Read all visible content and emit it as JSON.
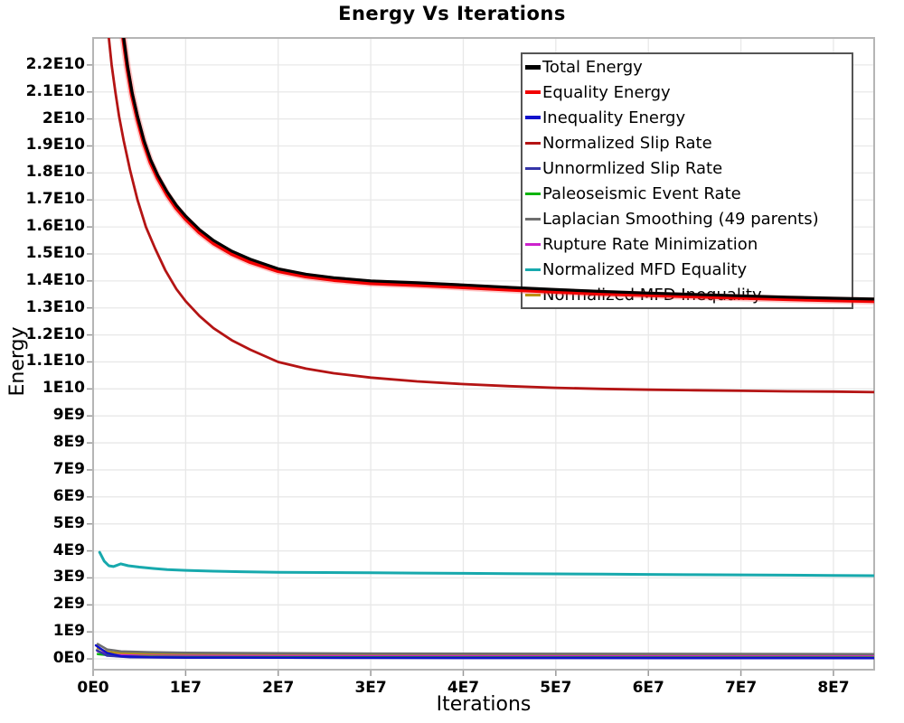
{
  "title": "Energy Vs Iterations",
  "chart_data": {
    "type": "line",
    "title": "Energy Vs Iterations",
    "xlabel": "Iterations",
    "ylabel": "Energy",
    "xlim": [
      0,
      84400000.0
    ],
    "ylim": [
      -400000000.0,
      23000000000.0
    ],
    "x_multiplier": 10000000.0,
    "y_multiplier": 1000000000.0,
    "grid": true,
    "grid_color": "#e8e8e8",
    "border_color": "#b5b5b5",
    "tick_color": "#999999",
    "legend_position": "top-right-inside",
    "x_ticks": [
      {
        "value": 0,
        "label": "0E0"
      },
      {
        "value": 1,
        "label": "1E7"
      },
      {
        "value": 2,
        "label": "2E7"
      },
      {
        "value": 3,
        "label": "3E7"
      },
      {
        "value": 4,
        "label": "4E7"
      },
      {
        "value": 5,
        "label": "5E7"
      },
      {
        "value": 6,
        "label": "6E7"
      },
      {
        "value": 7,
        "label": "7E7"
      },
      {
        "value": 8,
        "label": "8E7"
      }
    ],
    "y_ticks": [
      {
        "value": 0,
        "label": "0E0"
      },
      {
        "value": 1,
        "label": "1E9"
      },
      {
        "value": 2,
        "label": "2E9"
      },
      {
        "value": 3,
        "label": "3E9"
      },
      {
        "value": 4,
        "label": "4E9"
      },
      {
        "value": 5,
        "label": "5E9"
      },
      {
        "value": 6,
        "label": "6E9"
      },
      {
        "value": 7,
        "label": "7E9"
      },
      {
        "value": 8,
        "label": "8E9"
      },
      {
        "value": 9,
        "label": "9E9"
      },
      {
        "value": 10,
        "label": "1E10"
      },
      {
        "value": 11,
        "label": "1.1E10"
      },
      {
        "value": 12,
        "label": "1.2E10"
      },
      {
        "value": 13,
        "label": "1.3E10"
      },
      {
        "value": 14,
        "label": "1.4E10"
      },
      {
        "value": 15,
        "label": "1.5E10"
      },
      {
        "value": 16,
        "label": "1.6E10"
      },
      {
        "value": 17,
        "label": "1.7E10"
      },
      {
        "value": 18,
        "label": "1.8E10"
      },
      {
        "value": 19,
        "label": "1.9E10"
      },
      {
        "value": 20,
        "label": "2E10"
      },
      {
        "value": 21,
        "label": "2.1E10"
      },
      {
        "value": 22,
        "label": "2.2E10"
      }
    ],
    "series": [
      {
        "name": "Total Energy",
        "color": "#000000",
        "stroke_width": 3.2,
        "swatch_height": 5,
        "points": [
          [
            0.27,
            25
          ],
          [
            0.3,
            23.8
          ],
          [
            0.33,
            23.0
          ],
          [
            0.37,
            22.0
          ],
          [
            0.42,
            21.0
          ],
          [
            0.48,
            20.1
          ],
          [
            0.55,
            19.2
          ],
          [
            0.62,
            18.5
          ],
          [
            0.7,
            17.9
          ],
          [
            0.8,
            17.3
          ],
          [
            0.9,
            16.8
          ],
          [
            1.0,
            16.4
          ],
          [
            1.15,
            15.9
          ],
          [
            1.3,
            15.5
          ],
          [
            1.5,
            15.1
          ],
          [
            1.7,
            14.8
          ],
          [
            2.0,
            14.45
          ],
          [
            2.3,
            14.25
          ],
          [
            2.6,
            14.12
          ],
          [
            3.0,
            14.0
          ],
          [
            3.5,
            13.93
          ],
          [
            4.0,
            13.85
          ],
          [
            4.5,
            13.76
          ],
          [
            5.0,
            13.68
          ],
          [
            5.5,
            13.61
          ],
          [
            6.0,
            13.55
          ],
          [
            6.5,
            13.5
          ],
          [
            7.0,
            13.45
          ],
          [
            7.5,
            13.4
          ],
          [
            8.0,
            13.36
          ],
          [
            8.44,
            13.33
          ]
        ]
      },
      {
        "name": "Equality Energy",
        "color": "#f20000",
        "stroke_width": 4.5,
        "swatch_height": 4,
        "halo_color": "rgba(255,70,70,0.3)",
        "halo_width": 8,
        "points": [
          [
            0.27,
            24.9
          ],
          [
            0.3,
            23.7
          ],
          [
            0.33,
            22.9
          ],
          [
            0.37,
            21.9
          ],
          [
            0.42,
            20.9
          ],
          [
            0.48,
            20.0
          ],
          [
            0.55,
            19.1
          ],
          [
            0.62,
            18.4
          ],
          [
            0.7,
            17.8
          ],
          [
            0.8,
            17.2
          ],
          [
            0.9,
            16.7
          ],
          [
            1.0,
            16.3
          ],
          [
            1.15,
            15.8
          ],
          [
            1.3,
            15.4
          ],
          [
            1.5,
            15.0
          ],
          [
            1.7,
            14.7
          ],
          [
            2.0,
            14.37
          ],
          [
            2.3,
            14.17
          ],
          [
            2.6,
            14.04
          ],
          [
            3.0,
            13.92
          ],
          [
            3.5,
            13.85
          ],
          [
            4.0,
            13.77
          ],
          [
            4.5,
            13.68
          ],
          [
            5.0,
            13.6
          ],
          [
            5.5,
            13.53
          ],
          [
            6.0,
            13.48
          ],
          [
            6.5,
            13.43
          ],
          [
            7.0,
            13.38
          ],
          [
            7.5,
            13.33
          ],
          [
            8.0,
            13.29
          ],
          [
            8.44,
            13.26
          ]
        ]
      },
      {
        "name": "Inequality Energy",
        "color": "#1111cc",
        "stroke_width": 2.5,
        "swatch_height": 4,
        "points": [
          [
            0.03,
            0.5
          ],
          [
            0.08,
            0.38
          ],
          [
            0.15,
            0.22
          ],
          [
            0.3,
            0.1
          ],
          [
            0.6,
            0.06
          ],
          [
            1.0,
            0.05
          ],
          [
            3.0,
            0.04
          ],
          [
            8.44,
            0.03
          ]
        ]
      },
      {
        "name": "Normalized Slip Rate",
        "color": "#b41414",
        "stroke_width": 2.8,
        "swatch_height": 3,
        "points": [
          [
            0.12,
            25
          ],
          [
            0.14,
            24
          ],
          [
            0.17,
            23
          ],
          [
            0.2,
            22
          ],
          [
            0.24,
            21
          ],
          [
            0.28,
            20.1
          ],
          [
            0.33,
            19.2
          ],
          [
            0.4,
            18.1
          ],
          [
            0.48,
            17.0
          ],
          [
            0.57,
            16.0
          ],
          [
            0.67,
            15.2
          ],
          [
            0.78,
            14.4
          ],
          [
            0.9,
            13.7
          ],
          [
            1.0,
            13.25
          ],
          [
            1.15,
            12.7
          ],
          [
            1.3,
            12.25
          ],
          [
            1.5,
            11.8
          ],
          [
            1.7,
            11.45
          ],
          [
            2.0,
            11.0
          ],
          [
            2.3,
            10.75
          ],
          [
            2.6,
            10.58
          ],
          [
            3.0,
            10.42
          ],
          [
            3.5,
            10.28
          ],
          [
            4.0,
            10.18
          ],
          [
            4.5,
            10.1
          ],
          [
            5.0,
            10.04
          ],
          [
            5.5,
            10.0
          ],
          [
            6.0,
            9.97
          ],
          [
            6.5,
            9.95
          ],
          [
            7.0,
            9.93
          ],
          [
            7.5,
            9.91
          ],
          [
            8.0,
            9.9
          ],
          [
            8.44,
            9.88
          ]
        ]
      },
      {
        "name": "Unnormlized Slip Rate",
        "color": "#3535a8",
        "stroke_width": 2.5,
        "swatch_height": 3,
        "points": [
          [
            0.04,
            0.32
          ],
          [
            0.15,
            0.12
          ],
          [
            0.4,
            0.06
          ],
          [
            1.0,
            0.05
          ],
          [
            3.0,
            0.04
          ],
          [
            8.44,
            0.03
          ]
        ]
      },
      {
        "name": "Paleoseismic Event Rate",
        "color": "#0cb40c",
        "stroke_width": 2.5,
        "swatch_height": 3,
        "points": [
          [
            0.05,
            0.18
          ],
          [
            0.3,
            0.09
          ],
          [
            1.0,
            0.07
          ],
          [
            3.0,
            0.06
          ],
          [
            8.44,
            0.05
          ]
        ]
      },
      {
        "name": "Laplacian Smoothing (49 parents)",
        "color": "#6e6e6e",
        "stroke_width": 2.5,
        "swatch_height": 3,
        "points": [
          [
            0.05,
            0.55
          ],
          [
            0.15,
            0.35
          ],
          [
            0.3,
            0.28
          ],
          [
            0.6,
            0.25
          ],
          [
            1.0,
            0.23
          ],
          [
            2.0,
            0.21
          ],
          [
            3.0,
            0.2
          ],
          [
            5.0,
            0.19
          ],
          [
            8.44,
            0.18
          ]
        ]
      },
      {
        "name": "Rupture Rate Minimization",
        "color": "#cc22cc",
        "stroke_width": 2.5,
        "swatch_height": 3,
        "points": [
          [
            0.05,
            0.28
          ],
          [
            0.2,
            0.15
          ],
          [
            0.5,
            0.12
          ],
          [
            1.0,
            0.11
          ],
          [
            3.0,
            0.1
          ],
          [
            8.44,
            0.09
          ]
        ]
      },
      {
        "name": "Normalized MFD Equality",
        "color": "#17a9ad",
        "stroke_width": 3,
        "swatch_height": 3,
        "points": [
          [
            0.07,
            3.95
          ],
          [
            0.12,
            3.62
          ],
          [
            0.17,
            3.45
          ],
          [
            0.22,
            3.42
          ],
          [
            0.3,
            3.52
          ],
          [
            0.38,
            3.45
          ],
          [
            0.5,
            3.4
          ],
          [
            0.65,
            3.35
          ],
          [
            0.8,
            3.31
          ],
          [
            1.0,
            3.28
          ],
          [
            1.3,
            3.25
          ],
          [
            1.6,
            3.23
          ],
          [
            2.0,
            3.21
          ],
          [
            2.5,
            3.2
          ],
          [
            3.0,
            3.19
          ],
          [
            3.5,
            3.18
          ],
          [
            4.0,
            3.17
          ],
          [
            4.5,
            3.16
          ],
          [
            5.0,
            3.15
          ],
          [
            5.5,
            3.14
          ],
          [
            6.0,
            3.13
          ],
          [
            6.5,
            3.12
          ],
          [
            7.0,
            3.11
          ],
          [
            7.5,
            3.1
          ],
          [
            8.0,
            3.09
          ],
          [
            8.44,
            3.08
          ]
        ]
      },
      {
        "name": "Normalized MFD Inequality",
        "color": "#b8940f",
        "stroke_width": 2.5,
        "swatch_height": 3,
        "points": [
          [
            0.05,
            0.4
          ],
          [
            0.15,
            0.26
          ],
          [
            0.3,
            0.21
          ],
          [
            0.6,
            0.18
          ],
          [
            1.0,
            0.17
          ],
          [
            2.0,
            0.16
          ],
          [
            4.0,
            0.15
          ],
          [
            8.44,
            0.14
          ]
        ]
      }
    ]
  }
}
